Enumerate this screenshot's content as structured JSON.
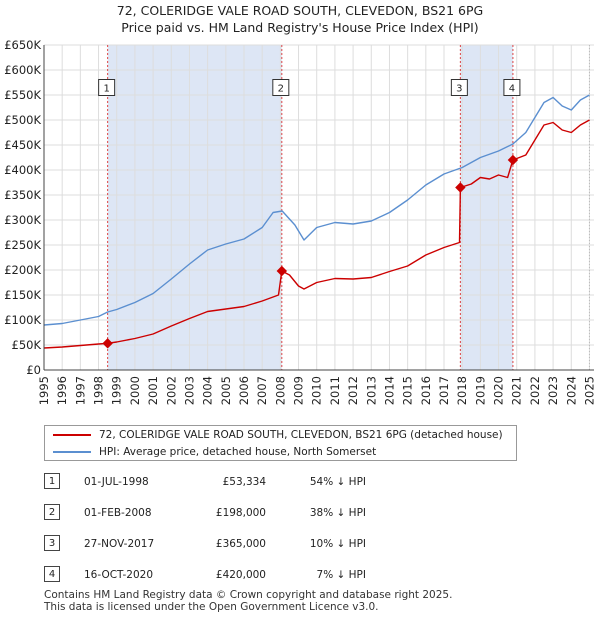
{
  "title_line1": "72, COLERIDGE VALE ROAD SOUTH, CLEVEDON, BS21 6PG",
  "title_line2": "Price paid vs. HM Land Registry's House Price Index (HPI)",
  "colors": {
    "property": "#cc0000",
    "hpi": "#5b8fd0",
    "shade": "#dde6f5",
    "vline": "#dd4444"
  },
  "chart_data": {
    "type": "line",
    "xlim": [
      1995.0,
      2025.25
    ],
    "ylim": [
      0,
      650000
    ],
    "x_ticks": [
      1995,
      1996,
      1997,
      1998,
      1999,
      2000,
      2001,
      2002,
      2003,
      2004,
      2005,
      2006,
      2007,
      2008,
      2009,
      2010,
      2011,
      2012,
      2013,
      2014,
      2015,
      2016,
      2017,
      2018,
      2019,
      2020,
      2021,
      2022,
      2023,
      2024,
      2025
    ],
    "y_ticks": [
      0,
      50000,
      100000,
      150000,
      200000,
      250000,
      300000,
      350000,
      400000,
      450000,
      500000,
      550000,
      600000,
      650000
    ],
    "y_tick_labels": [
      "£0",
      "£50K",
      "£100K",
      "£150K",
      "£200K",
      "£250K",
      "£300K",
      "£350K",
      "£400K",
      "£450K",
      "£500K",
      "£550K",
      "£600K",
      "£650K"
    ],
    "shaded_periods": [
      [
        1998.5,
        2008.08
      ],
      [
        2017.9,
        2020.79
      ]
    ],
    "series": [
      {
        "name": "72, COLERIDGE VALE ROAD SOUTH, CLEVEDON, BS21 6PG (detached house)",
        "key": "property",
        "points": [
          [
            1995.0,
            44000
          ],
          [
            1996.0,
            46000
          ],
          [
            1997.0,
            49000
          ],
          [
            1998.0,
            52000
          ],
          [
            1998.5,
            53334
          ],
          [
            1999.0,
            56000
          ],
          [
            2000.0,
            63000
          ],
          [
            2001.0,
            72000
          ],
          [
            2002.0,
            88000
          ],
          [
            2003.0,
            103000
          ],
          [
            2004.0,
            117000
          ],
          [
            2005.0,
            122000
          ],
          [
            2006.0,
            127000
          ],
          [
            2007.0,
            138000
          ],
          [
            2007.9,
            150000
          ],
          [
            2008.08,
            198000
          ],
          [
            2008.5,
            190000
          ],
          [
            2009.0,
            168000
          ],
          [
            2009.3,
            162000
          ],
          [
            2010.0,
            175000
          ],
          [
            2011.0,
            183000
          ],
          [
            2012.0,
            182000
          ],
          [
            2013.0,
            185000
          ],
          [
            2014.0,
            197000
          ],
          [
            2015.0,
            208000
          ],
          [
            2016.0,
            230000
          ],
          [
            2017.0,
            245000
          ],
          [
            2017.85,
            255000
          ],
          [
            2017.9,
            365000
          ],
          [
            2018.5,
            372000
          ],
          [
            2019.0,
            385000
          ],
          [
            2019.5,
            382000
          ],
          [
            2020.0,
            390000
          ],
          [
            2020.5,
            385000
          ],
          [
            2020.79,
            420000
          ],
          [
            2021.5,
            430000
          ],
          [
            2022.0,
            460000
          ],
          [
            2022.5,
            490000
          ],
          [
            2023.0,
            495000
          ],
          [
            2023.5,
            480000
          ],
          [
            2024.0,
            475000
          ],
          [
            2024.5,
            490000
          ],
          [
            2025.0,
            500000
          ]
        ]
      },
      {
        "name": "HPI: Average price, detached house, North Somerset",
        "key": "hpi",
        "points": [
          [
            1995.0,
            90000
          ],
          [
            1996.0,
            93000
          ],
          [
            1997.0,
            100000
          ],
          [
            1998.0,
            107000
          ],
          [
            1998.5,
            116000
          ],
          [
            1999.0,
            121000
          ],
          [
            2000.0,
            135000
          ],
          [
            2001.0,
            153000
          ],
          [
            2002.0,
            182000
          ],
          [
            2003.0,
            212000
          ],
          [
            2004.0,
            240000
          ],
          [
            2005.0,
            252000
          ],
          [
            2006.0,
            262000
          ],
          [
            2007.0,
            285000
          ],
          [
            2007.6,
            315000
          ],
          [
            2008.1,
            318000
          ],
          [
            2008.8,
            290000
          ],
          [
            2009.3,
            260000
          ],
          [
            2010.0,
            285000
          ],
          [
            2011.0,
            295000
          ],
          [
            2012.0,
            292000
          ],
          [
            2013.0,
            298000
          ],
          [
            2014.0,
            315000
          ],
          [
            2015.0,
            340000
          ],
          [
            2016.0,
            370000
          ],
          [
            2017.0,
            392000
          ],
          [
            2018.0,
            405000
          ],
          [
            2019.0,
            425000
          ],
          [
            2020.0,
            438000
          ],
          [
            2020.79,
            452000
          ],
          [
            2021.5,
            475000
          ],
          [
            2022.0,
            505000
          ],
          [
            2022.5,
            535000
          ],
          [
            2023.0,
            545000
          ],
          [
            2023.5,
            528000
          ],
          [
            2024.0,
            520000
          ],
          [
            2024.5,
            540000
          ],
          [
            2025.0,
            550000
          ]
        ]
      }
    ],
    "sales": [
      {
        "label": "1",
        "x": 1998.5,
        "y": 53334
      },
      {
        "label": "2",
        "x": 2008.08,
        "y": 198000
      },
      {
        "label": "3",
        "x": 2017.9,
        "y": 365000
      },
      {
        "label": "4",
        "x": 2020.79,
        "y": 420000
      }
    ],
    "marker_box_y": 565000
  },
  "legend": {
    "property": "72, COLERIDGE VALE ROAD SOUTH, CLEVEDON, BS21 6PG (detached house)",
    "hpi": "HPI: Average price, detached house, North Somerset"
  },
  "sales_table": [
    {
      "num": "1",
      "date": "01-JUL-1998",
      "price": "£53,334",
      "hpi": "54% ↓ HPI"
    },
    {
      "num": "2",
      "date": "01-FEB-2008",
      "price": "£198,000",
      "hpi": "38% ↓ HPI"
    },
    {
      "num": "3",
      "date": "27-NOV-2017",
      "price": "£365,000",
      "hpi": "10% ↓ HPI"
    },
    {
      "num": "4",
      "date": "16-OCT-2020",
      "price": "£420,000",
      "hpi": "7% ↓ HPI"
    }
  ],
  "footer_line1": "Contains HM Land Registry data © Crown copyright and database right 2025.",
  "footer_line2": "This data is licensed under the Open Government Licence v3.0."
}
